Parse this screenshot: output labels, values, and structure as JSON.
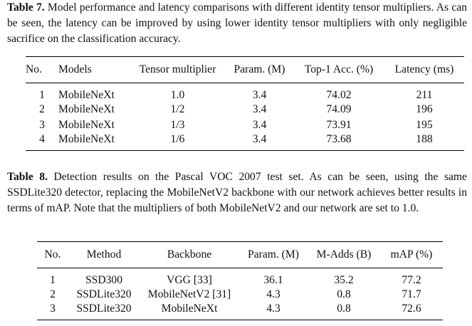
{
  "table7": {
    "caption_label": "Table 7.",
    "caption_text": " Model performance and latency comparisons with different identity tensor multipliers. As can be seen, the latency can be improved by using lower identity tensor multipliers with only negligible sacrifice on the classification accuracy.",
    "headers": [
      "No.",
      "Models",
      "Tensor multiplier",
      "Param. (M)",
      "Top-1 Acc. (%)",
      "Latency (ms)"
    ],
    "rows": [
      [
        "1",
        "MobileNeXt",
        "1.0",
        "3.4",
        "74.02",
        "211"
      ],
      [
        "2",
        "MobileNeXt",
        "1/2",
        "3.4",
        "74.09",
        "196"
      ],
      [
        "3",
        "MobileNeXt",
        "1/3",
        "3.4",
        "73.91",
        "195"
      ],
      [
        "4",
        "MobileNeXt",
        "1/6",
        "3.4",
        "73.68",
        "188"
      ]
    ]
  },
  "table8": {
    "caption_label": "Table 8.",
    "caption_text": " Detection results on the Pascal VOC 2007 test set. As can be seen, using the same SSDLite320 detector, replacing the MobileNetV2 backbone with our network achieves better results in terms of mAP. Note that the multipliers of both MobileNetV2 and our network are set to 1.0.",
    "headers": [
      "No.",
      "Method",
      "Backbone",
      "Param. (M)",
      "M-Adds (B)",
      "mAP (%)"
    ],
    "rows": [
      [
        "1",
        "SSD300",
        "VGG [33]",
        "36.1",
        "35.2",
        "77.2"
      ],
      [
        "2",
        "SSDLite320",
        "MobileNetV2 [31]",
        "4.3",
        "0.8",
        "71.7"
      ],
      [
        "3",
        "SSDLite320",
        "MobileNeXt",
        "4.3",
        "0.8",
        "72.6"
      ]
    ]
  }
}
